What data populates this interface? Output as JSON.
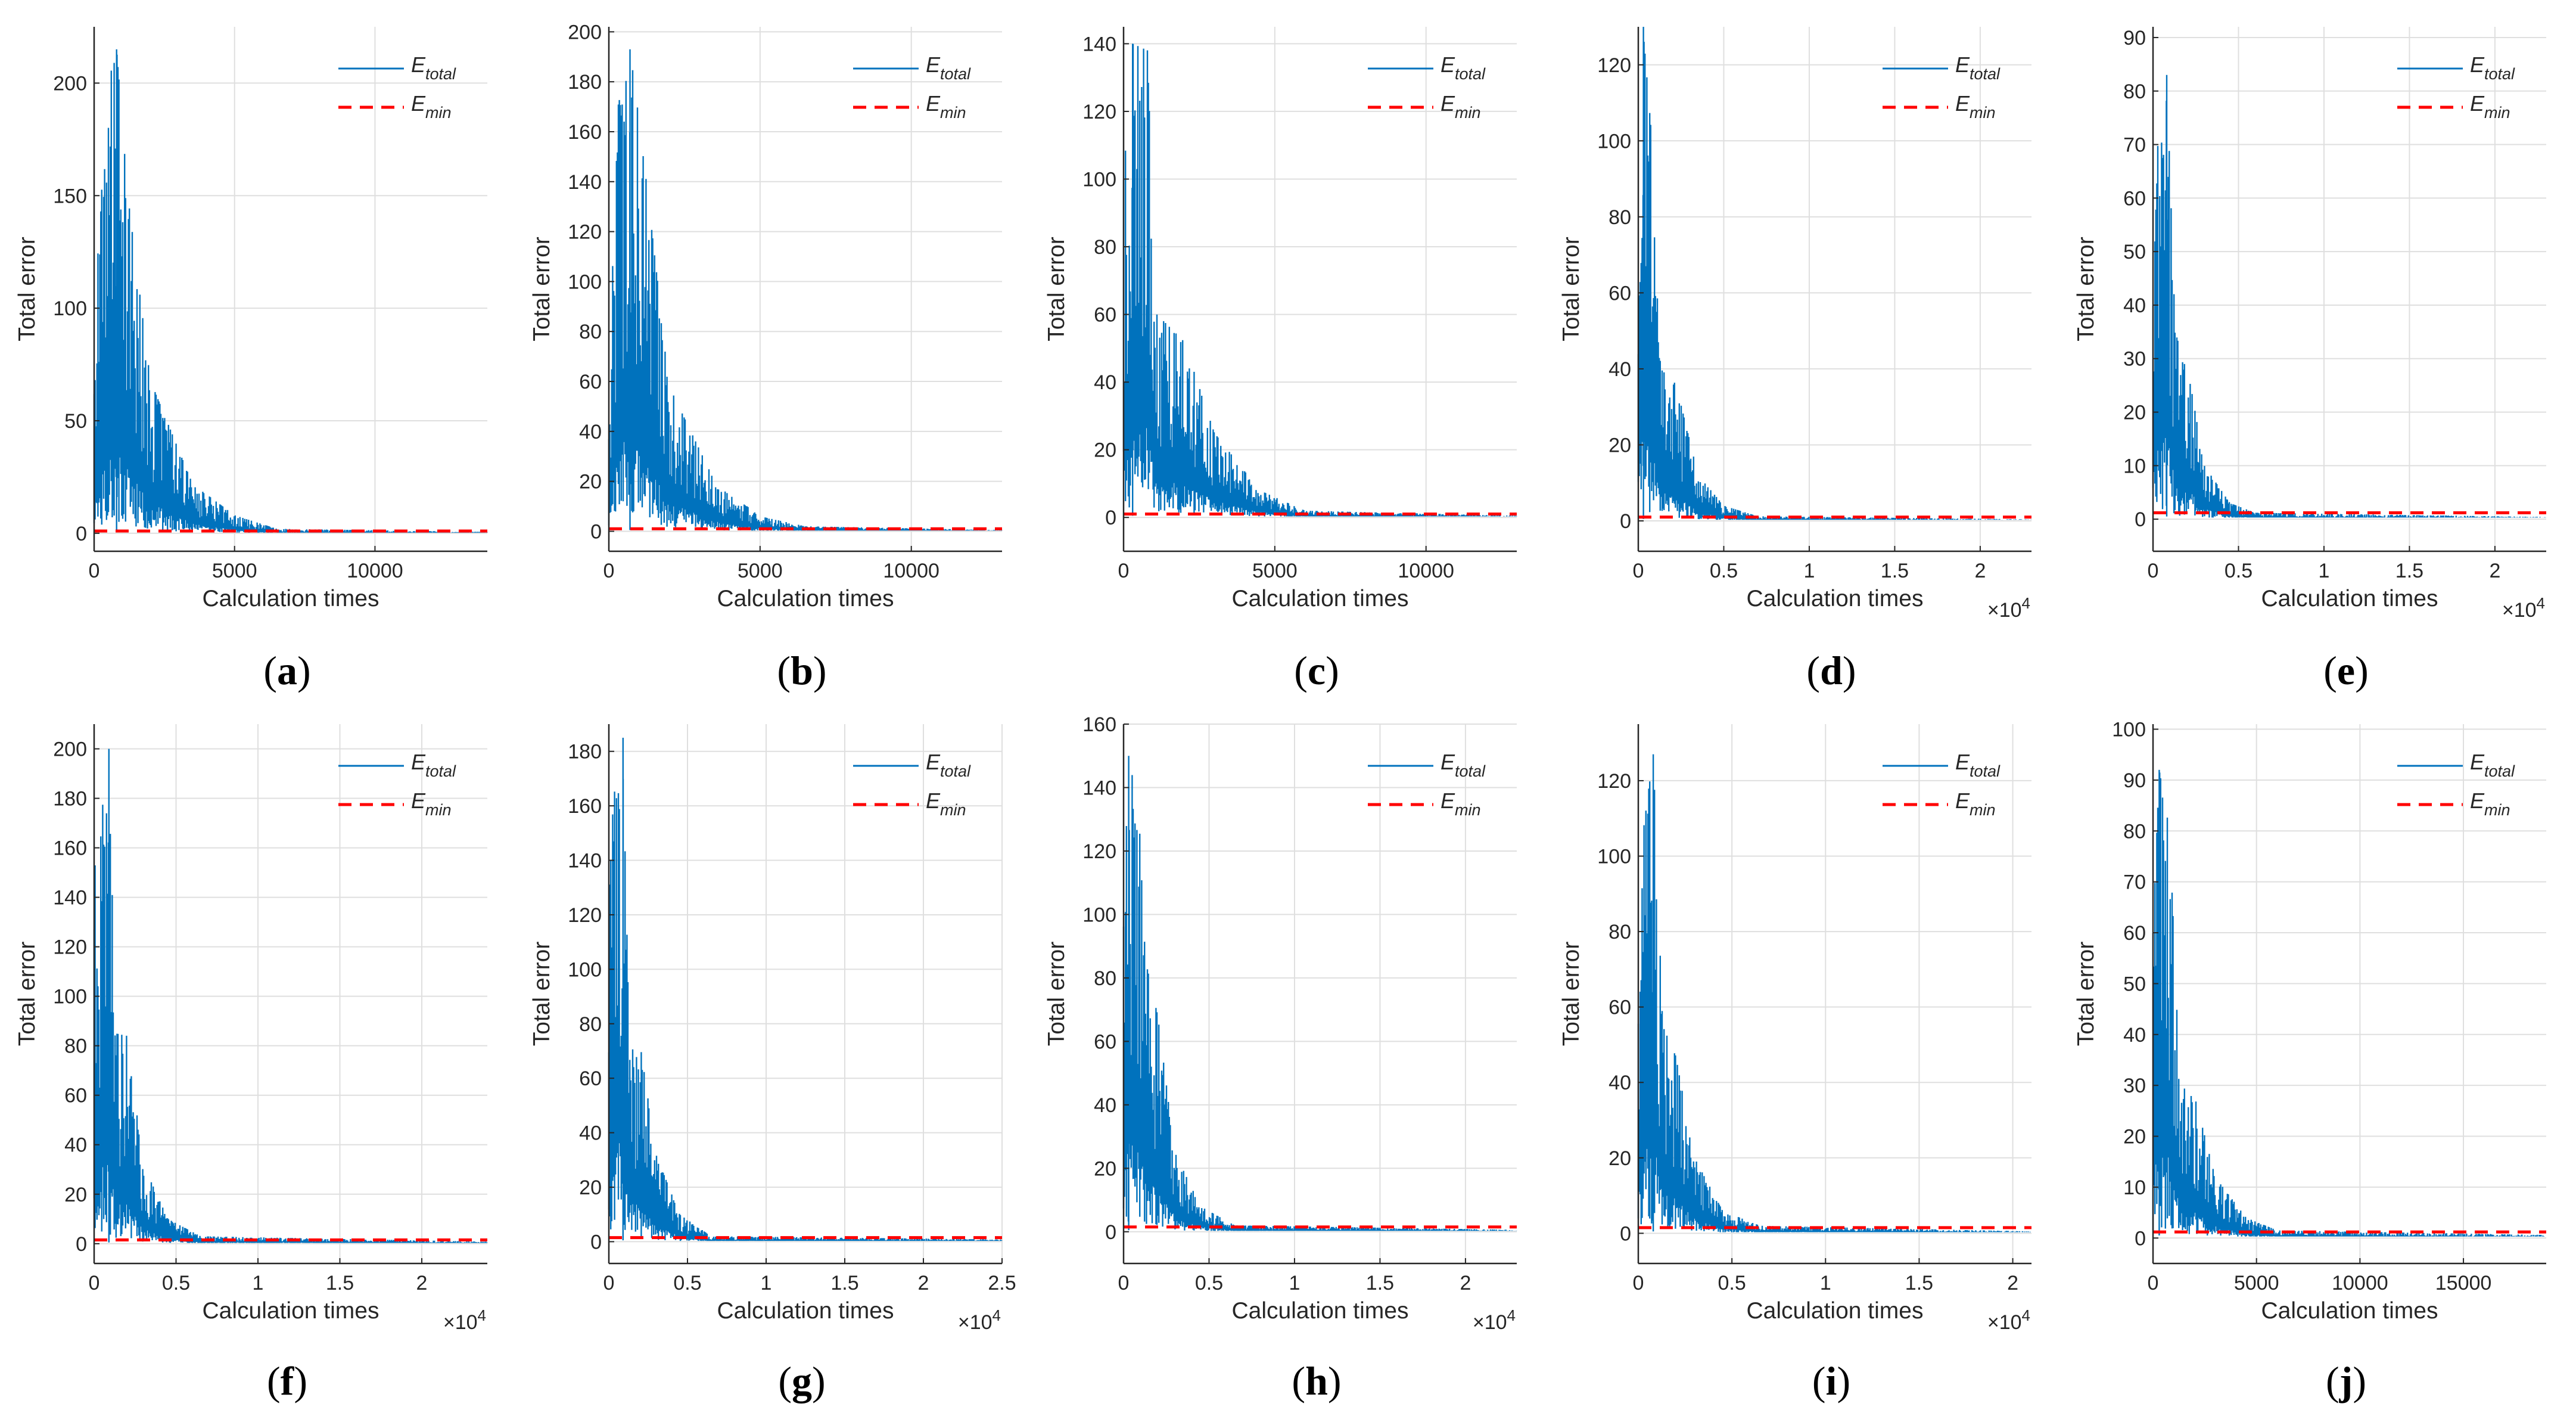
{
  "figure": {
    "colors": {
      "total": "#0072bd",
      "min": "#ff0000",
      "grid": "#dfdfdf",
      "axis": "#262626"
    },
    "legend": {
      "total_main": "E",
      "total_sub": "total",
      "min_main": "E",
      "min_sub": "min"
    }
  },
  "chart_data": [
    {
      "panel": "a",
      "type": "line",
      "xlabel": "Calculation times",
      "ylabel": "Total error",
      "xlim": [
        0,
        14000
      ],
      "ylim": [
        -8,
        225
      ],
      "xticks": [
        0,
        5000,
        10000
      ],
      "xtick_labels": [
        "0",
        "5000",
        "10000"
      ],
      "x_exponent": null,
      "yticks": [
        0,
        50,
        100,
        150,
        200
      ],
      "ytick_labels": [
        "0",
        "50",
        "100",
        "150",
        "200"
      ],
      "series": [
        {
          "name": "E_total",
          "peak": 215,
          "envelope": [
            [
              0,
              70
            ],
            [
              300,
              190
            ],
            [
              800,
              215
            ],
            [
              1200,
              150
            ],
            [
              2000,
              68
            ],
            [
              3500,
              22
            ],
            [
              5000,
              8
            ],
            [
              6500,
              2
            ],
            [
              14000,
              0.6
            ]
          ]
        },
        {
          "name": "E_min",
          "values": [
            1.0,
            1.0
          ],
          "x": [
            0,
            14000
          ],
          "style": "dashed"
        }
      ]
    },
    {
      "panel": "b",
      "type": "line",
      "xlabel": "Calculation times",
      "ylabel": "Total error",
      "xlim": [
        0,
        13000
      ],
      "ylim": [
        -8,
        202
      ],
      "xticks": [
        0,
        5000,
        10000
      ],
      "xtick_labels": [
        "0",
        "5000",
        "10000"
      ],
      "x_exponent": null,
      "yticks": [
        0,
        20,
        40,
        60,
        80,
        100,
        120,
        140,
        160,
        180,
        200
      ],
      "ytick_labels": [
        "0",
        "20",
        "40",
        "60",
        "80",
        "100",
        "120",
        "140",
        "160",
        "180",
        "200"
      ],
      "series": [
        {
          "name": "E_total",
          "peak": 193,
          "envelope": [
            [
              0,
              60
            ],
            [
              300,
              170
            ],
            [
              700,
              193
            ],
            [
              1100,
              155
            ],
            [
              2000,
              58
            ],
            [
              3500,
              20
            ],
            [
              5000,
              6
            ],
            [
              6500,
              2
            ],
            [
              13000,
              0.5
            ]
          ]
        },
        {
          "name": "E_min",
          "values": [
            1.0,
            1.0
          ],
          "x": [
            0,
            13000
          ],
          "style": "dashed"
        }
      ]
    },
    {
      "panel": "c",
      "type": "line",
      "xlabel": "Calculation times",
      "ylabel": "Total error",
      "xlim": [
        0,
        13000
      ],
      "ylim": [
        -10,
        145
      ],
      "xticks": [
        0,
        5000,
        10000
      ],
      "xtick_labels": [
        "0",
        "5000",
        "10000"
      ],
      "x_exponent": null,
      "yticks": [
        0,
        20,
        40,
        60,
        80,
        100,
        120,
        140
      ],
      "ytick_labels": [
        "0",
        "20",
        "40",
        "60",
        "80",
        "100",
        "120",
        "140"
      ],
      "series": [
        {
          "name": "E_total",
          "peak": 140,
          "envelope": [
            [
              0,
              100
            ],
            [
              300,
              140
            ],
            [
              800,
              138
            ],
            [
              1100,
              60
            ],
            [
              2000,
              52
            ],
            [
              3000,
              25
            ],
            [
              4500,
              8
            ],
            [
              6000,
              2
            ],
            [
              13000,
              0.5
            ]
          ]
        },
        {
          "name": "E_min",
          "values": [
            1.0,
            1.0
          ],
          "x": [
            0,
            13000
          ],
          "style": "dashed"
        }
      ]
    },
    {
      "panel": "d",
      "type": "line",
      "xlabel": "Calculation times",
      "ylabel": "Total error",
      "xlim": [
        0,
        23000
      ],
      "ylim": [
        -8,
        130
      ],
      "xticks": [
        0,
        5000,
        10000,
        15000,
        20000
      ],
      "xtick_labels": [
        "0",
        "0.5",
        "1",
        "1.5",
        "2"
      ],
      "x_exponent": "4",
      "yticks": [
        0,
        20,
        40,
        60,
        80,
        100,
        120
      ],
      "ytick_labels": [
        "0",
        "20",
        "40",
        "60",
        "80",
        "100",
        "120"
      ],
      "series": [
        {
          "name": "E_total",
          "peak": 130,
          "envelope": [
            [
              0,
              60
            ],
            [
              300,
              128
            ],
            [
              800,
              100
            ],
            [
              1300,
              40
            ],
            [
              2200,
              36
            ],
            [
              3500,
              12
            ],
            [
              5000,
              4
            ],
            [
              7000,
              1.2
            ],
            [
              23000,
              0.4
            ]
          ]
        },
        {
          "name": "E_min",
          "values": [
            1.0,
            1.0
          ],
          "x": [
            0,
            23000
          ],
          "style": "dashed"
        }
      ]
    },
    {
      "panel": "e",
      "type": "line",
      "xlabel": "Calculation times",
      "ylabel": "Total error",
      "xlim": [
        0,
        23000
      ],
      "ylim": [
        -6,
        92
      ],
      "xticks": [
        0,
        5000,
        10000,
        15000,
        20000
      ],
      "xtick_labels": [
        "0",
        "0.5",
        "1",
        "1.5",
        "2"
      ],
      "x_exponent": "4",
      "yticks": [
        0,
        10,
        20,
        30,
        40,
        50,
        60,
        70,
        80,
        90
      ],
      "ytick_labels": [
        "0",
        "10",
        "20",
        "30",
        "40",
        "50",
        "60",
        "70",
        "80",
        "90"
      ],
      "series": [
        {
          "name": "E_total",
          "peak": 83,
          "envelope": [
            [
              0,
              40
            ],
            [
              300,
              72
            ],
            [
              800,
              83
            ],
            [
              1300,
              35
            ],
            [
              2200,
              25
            ],
            [
              3000,
              10
            ],
            [
              4500,
              3
            ],
            [
              6000,
              1.2
            ],
            [
              23000,
              0.4
            ]
          ]
        },
        {
          "name": "E_min",
          "values": [
            1.2,
            1.2
          ],
          "x": [
            0,
            23000
          ],
          "style": "dashed"
        }
      ]
    },
    {
      "panel": "f",
      "type": "line",
      "xlabel": "Calculation times",
      "ylabel": "Total error",
      "xlim": [
        0,
        24000
      ],
      "ylim": [
        -8,
        210
      ],
      "xticks": [
        0,
        5000,
        10000,
        15000,
        20000
      ],
      "xtick_labels": [
        "0",
        "0.5",
        "1",
        "1.5",
        "2"
      ],
      "x_exponent": "4",
      "yticks": [
        0,
        20,
        40,
        60,
        80,
        100,
        120,
        140,
        160,
        180,
        200
      ],
      "ytick_labels": [
        "0",
        "20",
        "40",
        "60",
        "80",
        "100",
        "120",
        "140",
        "160",
        "180",
        "200"
      ],
      "series": [
        {
          "name": "E_total",
          "peak": 200,
          "envelope": [
            [
              0,
              150
            ],
            [
              400,
              170
            ],
            [
              900,
              200
            ],
            [
              1300,
              85
            ],
            [
              2000,
              84
            ],
            [
              3000,
              32
            ],
            [
              4500,
              10
            ],
            [
              6500,
              3
            ],
            [
              24000,
              0.8
            ]
          ]
        },
        {
          "name": "E_min",
          "values": [
            1.5,
            1.5
          ],
          "x": [
            0,
            24000
          ],
          "style": "dashed"
        }
      ]
    },
    {
      "panel": "g",
      "type": "line",
      "xlabel": "Calculation times",
      "ylabel": "Total error",
      "xlim": [
        0,
        25000
      ],
      "ylim": [
        -8,
        190
      ],
      "xticks": [
        0,
        5000,
        10000,
        15000,
        20000,
        25000
      ],
      "xtick_labels": [
        "0",
        "0.5",
        "1",
        "1.5",
        "2",
        "2.5"
      ],
      "x_exponent": "4",
      "yticks": [
        0,
        20,
        40,
        60,
        80,
        100,
        120,
        140,
        160,
        180
      ],
      "ytick_labels": [
        "0",
        "20",
        "40",
        "60",
        "80",
        "100",
        "120",
        "140",
        "160",
        "180"
      ],
      "series": [
        {
          "name": "E_total",
          "peak": 185,
          "envelope": [
            [
              0,
              120
            ],
            [
              300,
              175
            ],
            [
              900,
              185
            ],
            [
              1300,
              70
            ],
            [
              2000,
              72
            ],
            [
              3000,
              32
            ],
            [
              4500,
              10
            ],
            [
              6500,
              2
            ],
            [
              25000,
              0.8
            ]
          ]
        },
        {
          "name": "E_min",
          "values": [
            1.5,
            1.5
          ],
          "x": [
            0,
            25000
          ],
          "style": "dashed"
        }
      ]
    },
    {
      "panel": "h",
      "type": "line",
      "xlabel": "Calculation times",
      "ylabel": "Total error",
      "xlim": [
        0,
        23000
      ],
      "ylim": [
        -10,
        160
      ],
      "xticks": [
        0,
        5000,
        10000,
        15000,
        20000
      ],
      "xtick_labels": [
        "0",
        "0.5",
        "1",
        "1.5",
        "2"
      ],
      "x_exponent": "4",
      "yticks": [
        0,
        20,
        40,
        60,
        80,
        100,
        120,
        140,
        160
      ],
      "ytick_labels": [
        "0",
        "20",
        "40",
        "60",
        "80",
        "100",
        "120",
        "140",
        "160"
      ],
      "series": [
        {
          "name": "E_total",
          "peak": 150,
          "envelope": [
            [
              0,
              100
            ],
            [
              300,
              150
            ],
            [
              900,
              132
            ],
            [
              1300,
              85
            ],
            [
              2000,
              68
            ],
            [
              3000,
              25
            ],
            [
              4500,
              8
            ],
            [
              6500,
              2
            ],
            [
              23000,
              0.6
            ]
          ]
        },
        {
          "name": "E_min",
          "values": [
            1.5,
            1.5
          ],
          "x": [
            0,
            23000
          ],
          "style": "dashed"
        }
      ]
    },
    {
      "panel": "i",
      "type": "line",
      "xlabel": "Calculation times",
      "ylabel": "Total error",
      "xlim": [
        0,
        21000
      ],
      "ylim": [
        -8,
        135
      ],
      "xticks": [
        0,
        5000,
        10000,
        15000,
        20000
      ],
      "xtick_labels": [
        "0",
        "0.5",
        "1",
        "1.5",
        "2"
      ],
      "x_exponent": "4",
      "yticks": [
        0,
        20,
        40,
        60,
        80,
        100,
        120
      ],
      "ytick_labels": [
        "0",
        "20",
        "40",
        "60",
        "80",
        "100",
        "120"
      ],
      "series": [
        {
          "name": "E_total",
          "peak": 127,
          "envelope": [
            [
              0,
              80
            ],
            [
              300,
              108
            ],
            [
              800,
              127
            ],
            [
              1300,
              55
            ],
            [
              2000,
              47
            ],
            [
              3000,
              20
            ],
            [
              4500,
              6
            ],
            [
              6500,
              2
            ],
            [
              21000,
              0.5
            ]
          ]
        },
        {
          "name": "E_min",
          "values": [
            1.5,
            1.5
          ],
          "x": [
            0,
            21000
          ],
          "style": "dashed"
        }
      ]
    },
    {
      "panel": "j",
      "type": "line",
      "xlabel": "Calculation times",
      "ylabel": "Total error",
      "xlim": [
        0,
        19000
      ],
      "ylim": [
        -5,
        101
      ],
      "xticks": [
        0,
        5000,
        10000,
        15000
      ],
      "xtick_labels": [
        "0",
        "5000",
        "10000",
        "15000"
      ],
      "x_exponent": null,
      "yticks": [
        0,
        10,
        20,
        30,
        40,
        50,
        60,
        70,
        80,
        90,
        100
      ],
      "ytick_labels": [
        "0",
        "10",
        "20",
        "30",
        "40",
        "50",
        "60",
        "70",
        "80",
        "90",
        "100"
      ],
      "series": [
        {
          "name": "E_total",
          "peak": 92,
          "envelope": [
            [
              0,
              60
            ],
            [
              300,
              92
            ],
            [
              800,
              80
            ],
            [
              1300,
              30
            ],
            [
              2000,
              28
            ],
            [
              3000,
              12
            ],
            [
              4500,
              4
            ],
            [
              6000,
              1.5
            ],
            [
              19000,
              0.6
            ]
          ]
        },
        {
          "name": "E_min",
          "values": [
            1.2,
            1.2
          ],
          "x": [
            0,
            19000
          ],
          "style": "dashed"
        }
      ]
    }
  ]
}
